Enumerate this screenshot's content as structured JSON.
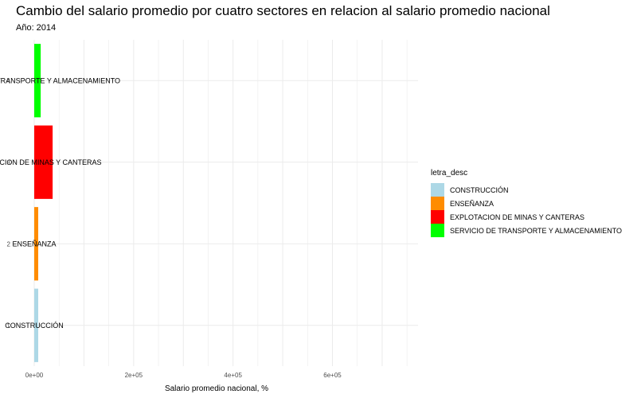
{
  "chart_data": {
    "type": "bar",
    "orientation": "horizontal",
    "title": "Cambio del salario promedio por cuatro sectores en relacion al salario promedio nacional",
    "subtitle": "Año: 2014",
    "xlabel": "Salario promedio nacional, %",
    "ylabel": "",
    "xlim": [
      0,
      780000
    ],
    "x_ticks": [
      0,
      200000,
      400000,
      600000
    ],
    "x_tick_labels": [
      "0e+00",
      "2e+05",
      "4e+05",
      "6e+05"
    ],
    "categories": [
      "1",
      "2",
      "3",
      "4"
    ],
    "values": [
      8000,
      8000,
      37000,
      13000
    ],
    "bar_labels": [
      "CONSTRUCCIÓN",
      "ENSEÑANZA",
      "EXPLOTACION DE MINAS Y CANTERAS",
      "SERVICIO DE TRANSPORTE Y ALMACENAMIENTO"
    ],
    "colors": [
      "#add8e6",
      "#ff8c00",
      "#ff0000",
      "#00ff00"
    ],
    "grid": true,
    "legend": {
      "title": "letra_desc",
      "position": "right",
      "entries": [
        "CONSTRUCCIÓN",
        "ENSEÑANZA",
        "EXPLOTACION DE MINAS Y CANTERAS",
        "SERVICIO DE TRANSPORTE Y ALMACENAMIENTO"
      ]
    }
  }
}
